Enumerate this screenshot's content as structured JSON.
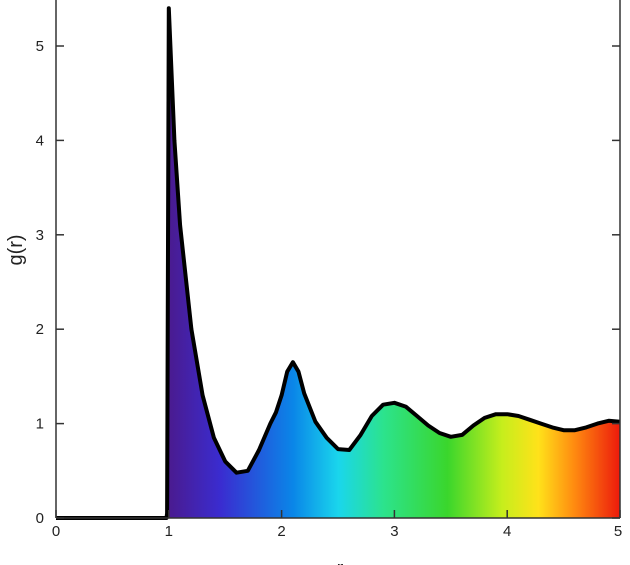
{
  "chart_data": {
    "type": "area",
    "title": "",
    "xlabel": "r",
    "ylabel": "g(r)",
    "xlim": [
      0,
      5
    ],
    "ylim": [
      0,
      5.5
    ],
    "x_ticks": [
      "0",
      "1",
      "2",
      "3",
      "4",
      "5"
    ],
    "y_ticks": [
      "0",
      "1",
      "2",
      "3",
      "4",
      "5"
    ],
    "grid": false,
    "legend": "none",
    "fill": "rainbow gradient along r (purple to red)",
    "line_color": "#000000",
    "series": [
      {
        "x": [
          0,
          0.98,
          0.985,
          1.0,
          1.05,
          1.1,
          1.2,
          1.3,
          1.4,
          1.5,
          1.6,
          1.7,
          1.8,
          1.9,
          1.95,
          2.0,
          2.05,
          2.1,
          2.15,
          2.2,
          2.3,
          2.4,
          2.5,
          2.6,
          2.7,
          2.8,
          2.9,
          3.0,
          3.1,
          3.2,
          3.3,
          3.4,
          3.5,
          3.6,
          3.7,
          3.8,
          3.9,
          4.0,
          4.1,
          4.2,
          4.3,
          4.4,
          4.5,
          4.6,
          4.7,
          4.8,
          4.9,
          5.0
        ],
        "y": [
          0,
          0,
          0.05,
          5.4,
          4.0,
          3.1,
          2.0,
          1.3,
          0.85,
          0.6,
          0.48,
          0.5,
          0.72,
          1.0,
          1.12,
          1.3,
          1.55,
          1.65,
          1.55,
          1.32,
          1.02,
          0.85,
          0.73,
          0.72,
          0.88,
          1.08,
          1.2,
          1.22,
          1.18,
          1.08,
          0.98,
          0.9,
          0.86,
          0.88,
          0.98,
          1.06,
          1.1,
          1.1,
          1.08,
          1.04,
          1.0,
          0.96,
          0.93,
          0.93,
          0.96,
          1.0,
          1.03,
          1.02
        ]
      }
    ]
  }
}
